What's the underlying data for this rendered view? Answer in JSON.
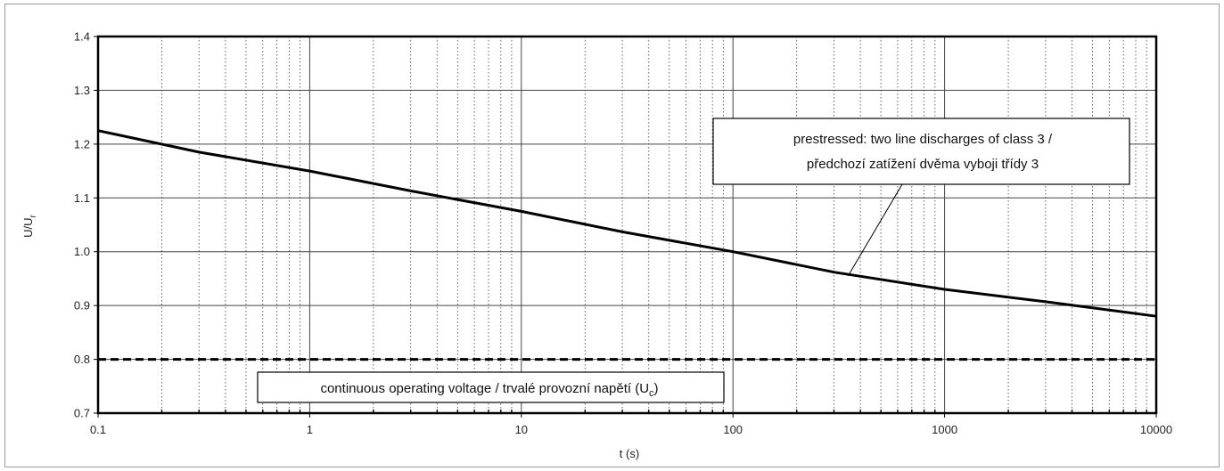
{
  "chart_data": {
    "type": "line",
    "title": "",
    "xlabel": "t (s)",
    "ylabel": "U/U",
    "ylabel_sub": "r",
    "x_scale": "log",
    "xlim": [
      0.1,
      10000
    ],
    "ylim": [
      0.7,
      1.4
    ],
    "x_ticks": [
      "0.1",
      "1",
      "10",
      "100",
      "1000",
      "10000"
    ],
    "y_ticks": [
      "0.7",
      "0.8",
      "0.9",
      "1.0",
      "1.1",
      "1.2",
      "1.3",
      "1.4"
    ],
    "grid": true,
    "series": [
      {
        "x": [
          0.1,
          0.3,
          1,
          3,
          10,
          30,
          100,
          300,
          1000,
          3000,
          10000
        ],
        "y": [
          1.225,
          1.185,
          1.15,
          1.113,
          1.075,
          1.037,
          1.0,
          0.962,
          0.93,
          0.907,
          0.88
        ],
        "style": "solid",
        "color": "#000000"
      },
      {
        "x": [
          0.1,
          10000
        ],
        "y": [
          0.8,
          0.8
        ],
        "style": "dashed",
        "color": "#000000"
      }
    ],
    "annotations": [
      {
        "lines": [
          "prestressed: two line discharges of class 3 /",
          "předchozí zatížení dvěma vyboji třídy 3"
        ],
        "points_to_x": 350,
        "points_to_y": 0.955
      },
      {
        "text": "continuous operating voltage / trvalé provozní napětí (U",
        "sub": "c",
        "suffix": ")"
      }
    ]
  }
}
